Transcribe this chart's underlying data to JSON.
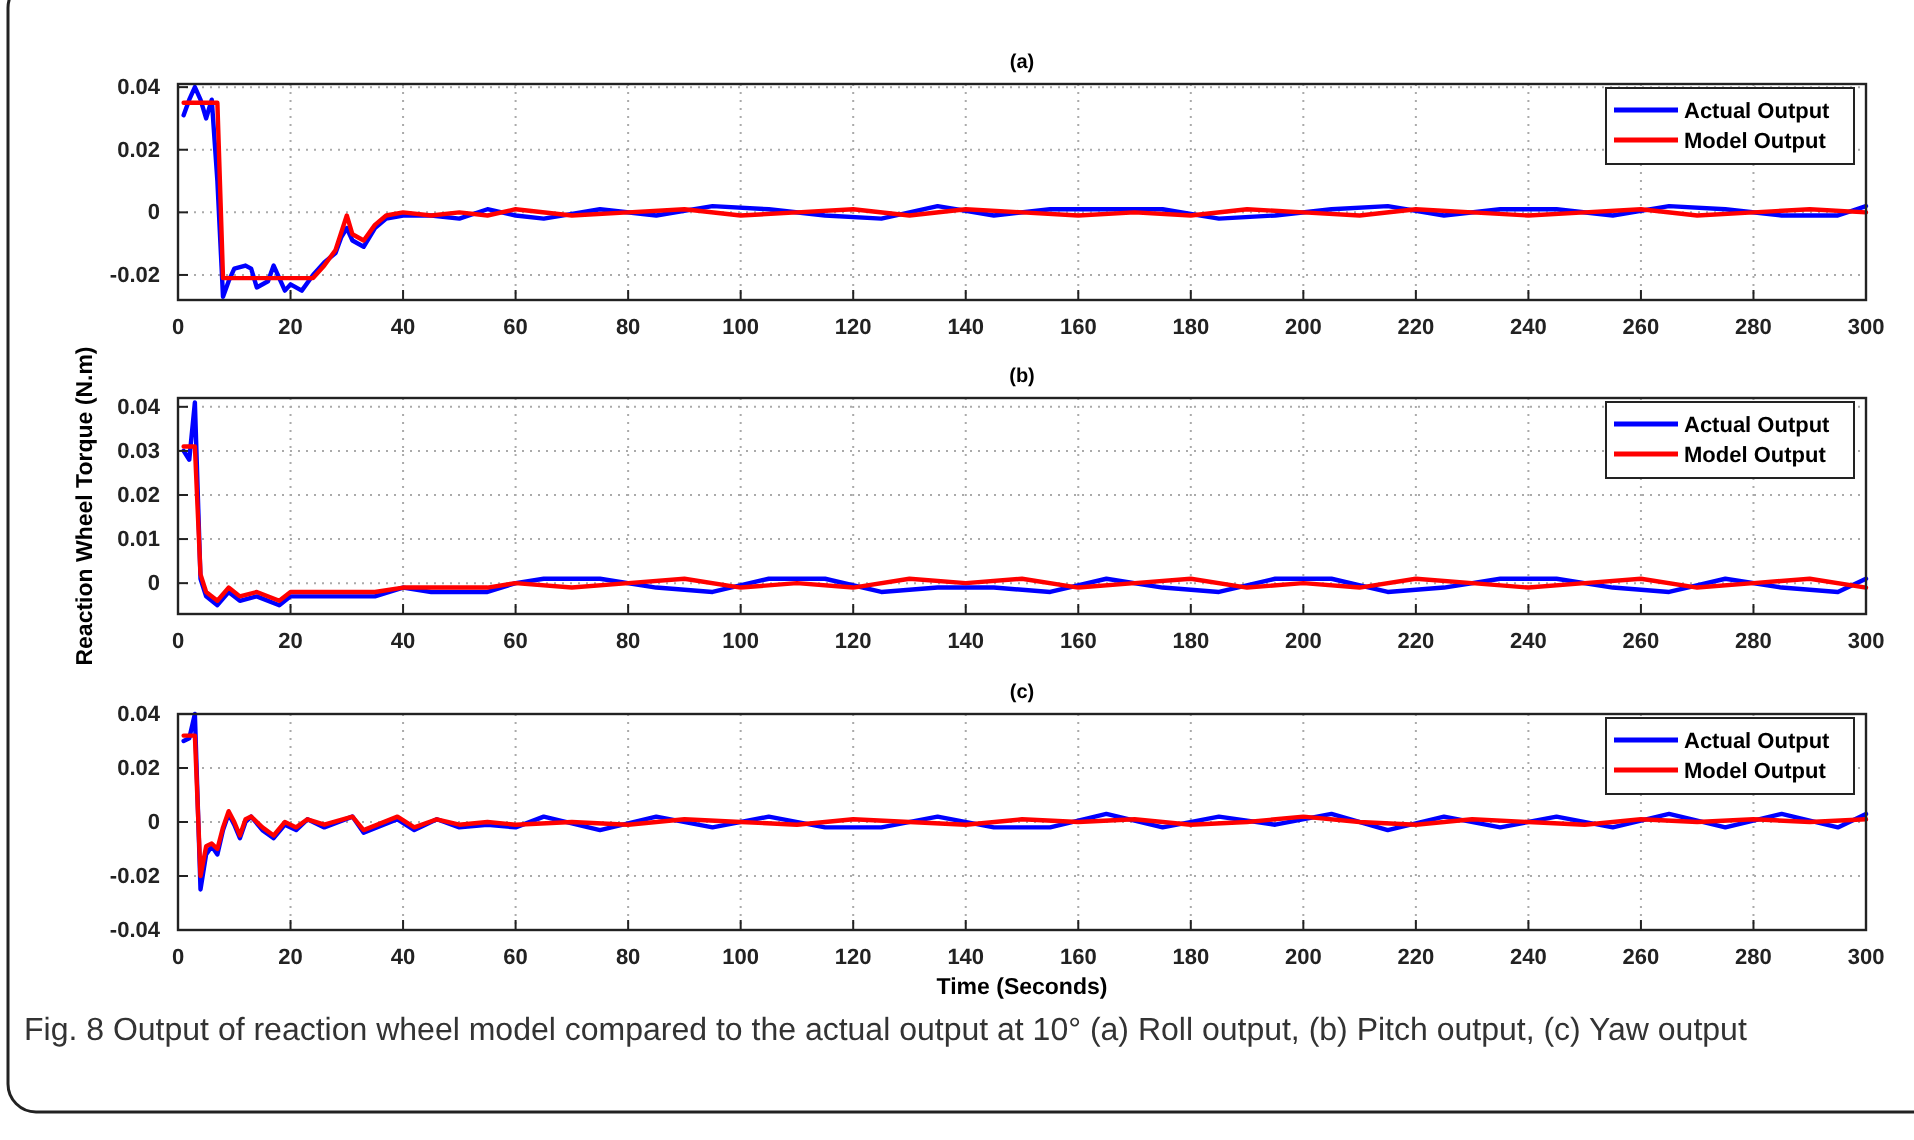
{
  "chart_data": [
    {
      "type": "line",
      "title": "(a)",
      "xlim": [
        0,
        300
      ],
      "ylim": [
        -0.028,
        0.041
      ],
      "xticks": [
        0,
        20,
        40,
        60,
        80,
        100,
        120,
        140,
        160,
        180,
        200,
        220,
        240,
        260,
        280,
        300
      ],
      "yticks": [
        -0.02,
        0,
        0.02,
        0.04
      ],
      "grid": true,
      "legend": "top right",
      "line_style": "solid",
      "series": [
        {
          "name": "Actual Output",
          "color": "#0000ff",
          "x": [
            1,
            2,
            3,
            4,
            5,
            6,
            7,
            8,
            9,
            10,
            12,
            13,
            14,
            16,
            17,
            18,
            19,
            20,
            22,
            24,
            26,
            28,
            29,
            30,
            31,
            33,
            35,
            37,
            40,
            45,
            50,
            55,
            60,
            65,
            75,
            85,
            95,
            105,
            115,
            125,
            135,
            145,
            155,
            165,
            175,
            185,
            195,
            205,
            215,
            225,
            235,
            245,
            255,
            265,
            275,
            285,
            295,
            300
          ],
          "values": [
            0.031,
            0.036,
            0.04,
            0.036,
            0.03,
            0.036,
            0.01,
            -0.027,
            -0.022,
            -0.018,
            -0.017,
            -0.018,
            -0.024,
            -0.022,
            -0.017,
            -0.021,
            -0.025,
            -0.023,
            -0.025,
            -0.02,
            -0.016,
            -0.013,
            -0.008,
            -0.005,
            -0.009,
            -0.011,
            -0.005,
            -0.002,
            -0.001,
            -0.001,
            -0.002,
            0.001,
            -0.001,
            -0.002,
            0.001,
            -0.001,
            0.002,
            0.001,
            -0.001,
            -0.002,
            0.002,
            -0.001,
            0.001,
            0.001,
            0.001,
            -0.002,
            -0.001,
            0.001,
            0.002,
            -0.001,
            0.001,
            0.001,
            -0.001,
            0.002,
            0.001,
            -0.001,
            -0.001,
            0.002
          ]
        },
        {
          "name": "Model Output",
          "color": "#ff0000",
          "x": [
            1,
            7,
            8,
            24,
            26,
            28,
            30,
            31,
            33,
            35,
            37,
            40,
            45,
            50,
            55,
            60,
            70,
            80,
            90,
            100,
            110,
            120,
            130,
            140,
            150,
            160,
            170,
            180,
            190,
            200,
            210,
            220,
            230,
            240,
            250,
            260,
            270,
            280,
            290,
            300
          ],
          "values": [
            0.035,
            0.035,
            -0.021,
            -0.021,
            -0.017,
            -0.012,
            -0.001,
            -0.007,
            -0.009,
            -0.004,
            -0.001,
            0,
            -0.001,
            0,
            -0.001,
            0.001,
            -0.001,
            0,
            0.001,
            -0.001,
            0,
            0.001,
            -0.001,
            0.001,
            0,
            -0.001,
            0,
            -0.001,
            0.001,
            0,
            -0.001,
            0.001,
            0,
            -0.001,
            0,
            0.001,
            -0.001,
            0,
            0.001,
            0
          ]
        }
      ]
    },
    {
      "type": "line",
      "title": "(b)",
      "ylabel": "Reaction Wheel Torque (N.m)",
      "xlim": [
        0,
        300
      ],
      "ylim": [
        -0.007,
        0.042
      ],
      "xticks": [
        0,
        20,
        40,
        60,
        80,
        100,
        120,
        140,
        160,
        180,
        200,
        220,
        240,
        260,
        280,
        300
      ],
      "yticks": [
        0,
        0.01,
        0.02,
        0.03,
        0.04
      ],
      "grid": true,
      "legend": "top right",
      "line_style": "solid",
      "series": [
        {
          "name": "Actual Output",
          "color": "#0000ff",
          "x": [
            1,
            2,
            3,
            4,
            5,
            7,
            9,
            11,
            14,
            18,
            20,
            25,
            30,
            35,
            40,
            45,
            50,
            55,
            60,
            65,
            75,
            85,
            95,
            105,
            115,
            125,
            135,
            145,
            155,
            165,
            175,
            185,
            195,
            205,
            215,
            225,
            235,
            245,
            255,
            265,
            275,
            285,
            295,
            300
          ],
          "values": [
            0.03,
            0.028,
            0.041,
            0.001,
            -0.003,
            -0.005,
            -0.002,
            -0.004,
            -0.003,
            -0.005,
            -0.003,
            -0.003,
            -0.003,
            -0.003,
            -0.001,
            -0.002,
            -0.002,
            -0.002,
            0,
            0.001,
            0.001,
            -0.001,
            -0.002,
            0.001,
            0.001,
            -0.002,
            -0.001,
            -0.001,
            -0.002,
            0.001,
            -0.001,
            -0.002,
            0.001,
            0.001,
            -0.002,
            -0.001,
            0.001,
            0.001,
            -0.001,
            -0.002,
            0.001,
            -0.001,
            -0.002,
            0.001
          ]
        },
        {
          "name": "Model Output",
          "color": "#ff0000",
          "x": [
            1,
            3,
            4,
            5,
            7,
            9,
            11,
            14,
            18,
            20,
            25,
            30,
            35,
            40,
            45,
            50,
            55,
            60,
            70,
            80,
            90,
            100,
            110,
            120,
            130,
            140,
            150,
            160,
            170,
            180,
            190,
            200,
            210,
            220,
            230,
            240,
            250,
            260,
            270,
            280,
            290,
            300
          ],
          "values": [
            0.031,
            0.031,
            0.002,
            -0.002,
            -0.004,
            -0.001,
            -0.003,
            -0.002,
            -0.004,
            -0.002,
            -0.002,
            -0.002,
            -0.002,
            -0.001,
            -0.001,
            -0.001,
            -0.001,
            0,
            -0.001,
            0,
            0.001,
            -0.001,
            0,
            -0.001,
            0.001,
            0,
            0.001,
            -0.001,
            0,
            0.001,
            -0.001,
            0,
            -0.001,
            0.001,
            0,
            -0.001,
            0,
            0.001,
            -0.001,
            0,
            0.001,
            -0.001
          ]
        }
      ]
    },
    {
      "type": "line",
      "title": "(c)",
      "xlabel": "Time (Seconds)",
      "xlim": [
        0,
        300
      ],
      "ylim": [
        -0.04,
        0.04
      ],
      "xticks": [
        0,
        20,
        40,
        60,
        80,
        100,
        120,
        140,
        160,
        180,
        200,
        220,
        240,
        260,
        280,
        300
      ],
      "yticks": [
        -0.04,
        -0.02,
        0,
        0.02,
        0.04
      ],
      "grid": true,
      "legend": "top right",
      "line_style": "solid",
      "annotations": [
        "Fig. 8 Output of reaction wheel model compared to the actual output at 10° (a) Roll output, (b) Pitch output, (c) Yaw output"
      ],
      "series": [
        {
          "name": "Actual Output",
          "color": "#0000ff",
          "x": [
            1,
            2,
            3,
            4,
            5,
            6,
            7,
            8,
            9,
            10,
            11,
            12,
            13,
            15,
            17,
            19,
            21,
            23,
            26,
            31,
            33,
            39,
            42,
            46,
            50,
            55,
            60,
            65,
            75,
            85,
            95,
            105,
            115,
            125,
            135,
            145,
            155,
            165,
            175,
            185,
            195,
            205,
            215,
            225,
            235,
            245,
            255,
            265,
            275,
            285,
            295,
            300
          ],
          "values": [
            0.03,
            0.031,
            0.04,
            -0.025,
            -0.012,
            -0.009,
            -0.012,
            -0.003,
            0.003,
            -0.001,
            -0.006,
            0,
            0.002,
            -0.003,
            -0.006,
            -0.001,
            -0.003,
            0.001,
            -0.002,
            0.002,
            -0.004,
            0.001,
            -0.003,
            0.001,
            -0.002,
            -0.001,
            -0.002,
            0.002,
            -0.003,
            0.002,
            -0.002,
            0.002,
            -0.002,
            -0.002,
            0.002,
            -0.002,
            -0.002,
            0.003,
            -0.002,
            0.002,
            -0.001,
            0.003,
            -0.003,
            0.002,
            -0.002,
            0.002,
            -0.002,
            0.003,
            -0.002,
            0.003,
            -0.002,
            0.003
          ]
        },
        {
          "name": "Model Output",
          "color": "#ff0000",
          "x": [
            1,
            3,
            4,
            5,
            6,
            7,
            8,
            9,
            10,
            11,
            12,
            13,
            15,
            17,
            19,
            21,
            23,
            26,
            31,
            33,
            39,
            42,
            46,
            50,
            55,
            60,
            70,
            80,
            90,
            100,
            110,
            120,
            130,
            140,
            150,
            160,
            170,
            180,
            190,
            200,
            210,
            220,
            230,
            240,
            250,
            260,
            270,
            280,
            290,
            300
          ],
          "values": [
            0.032,
            0.032,
            -0.02,
            -0.009,
            -0.008,
            -0.01,
            -0.002,
            0.004,
            0,
            -0.005,
            0.001,
            0.002,
            -0.002,
            -0.005,
            0,
            -0.002,
            0.001,
            -0.001,
            0.002,
            -0.003,
            0.002,
            -0.002,
            0.001,
            -0.001,
            0,
            -0.001,
            0,
            -0.001,
            0.001,
            0,
            -0.001,
            0.001,
            0,
            -0.001,
            0.001,
            0,
            0.001,
            -0.001,
            0,
            0.002,
            0,
            -0.001,
            0.001,
            0,
            -0.001,
            0.001,
            0,
            0.001,
            0,
            0.001
          ]
        }
      ]
    }
  ]
}
